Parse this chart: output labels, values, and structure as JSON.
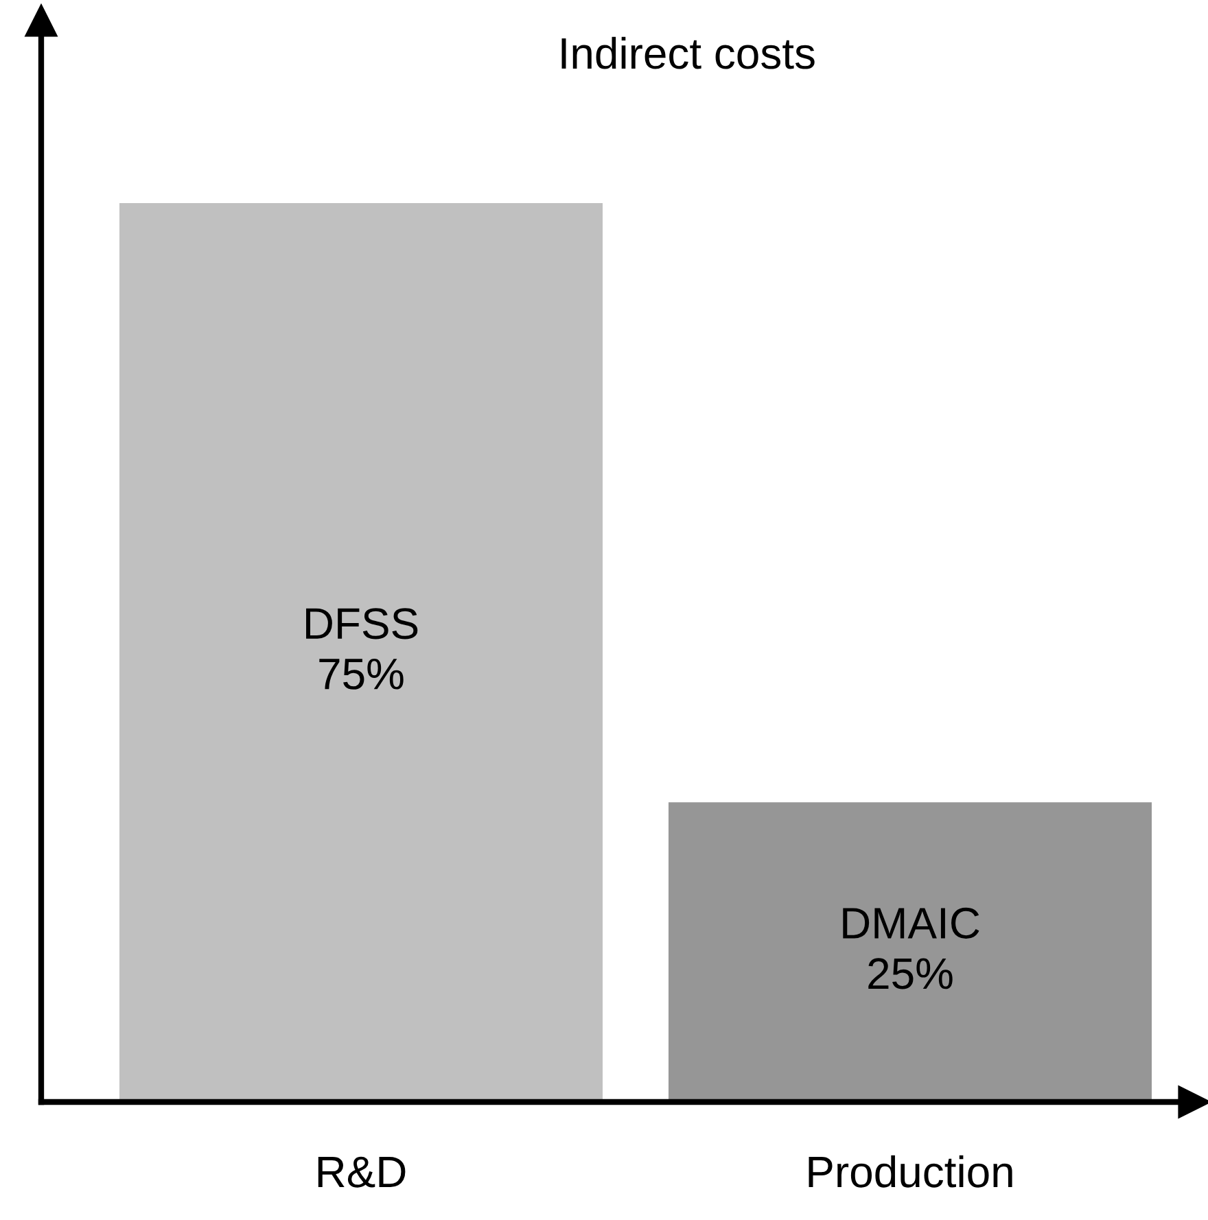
{
  "chart_data": {
    "type": "bar",
    "title": "Indirect costs",
    "categories": [
      "R&D",
      "Production"
    ],
    "values": [
      75,
      25
    ],
    "colors": [
      "#c0c0c0",
      "#969696"
    ],
    "value_labels": [
      "DFSS\n75%",
      "DMAIC\n25%"
    ],
    "grid": false,
    "legend": false
  }
}
